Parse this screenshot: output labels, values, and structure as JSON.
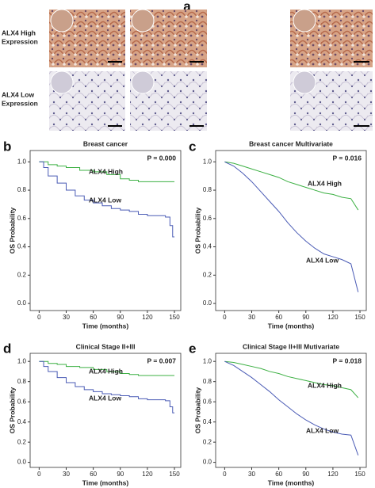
{
  "figure": {
    "panel_a": {
      "label": "a",
      "rows": [
        "ALX4 High",
        "Expression",
        "ALX4 Low",
        "Expression"
      ]
    }
  },
  "chart_data": [
    {
      "type": "line",
      "panel": "b",
      "step": true,
      "title": "Breast cancer",
      "annotation": "P = 0.000",
      "xlabel": "Time (months)",
      "ylabel": "OS  Probability",
      "xlim": [
        -10,
        157
      ],
      "ylim": [
        -0.05,
        1.08
      ],
      "xticks": [
        0,
        30,
        60,
        90,
        120,
        150
      ],
      "yticks": [
        {
          "value": 0,
          "label": "0.0"
        },
        0.2,
        0.4,
        0.6,
        0.8,
        {
          "value": 1,
          "label": "1.0"
        }
      ],
      "series": [
        {
          "name": "ALX4 High",
          "color": "#3cb043",
          "x": [
            0,
            10,
            20,
            30,
            45,
            60,
            75,
            90,
            100,
            110,
            150
          ],
          "values": [
            1.0,
            0.98,
            0.97,
            0.96,
            0.94,
            0.93,
            0.91,
            0.88,
            0.87,
            0.86,
            0.86
          ]
        },
        {
          "name": "ALX4 Low",
          "color": "#4a5bb5",
          "x": [
            0,
            5,
            10,
            20,
            30,
            40,
            50,
            60,
            70,
            80,
            90,
            100,
            110,
            120,
            140,
            145,
            148,
            150
          ],
          "values": [
            1.0,
            0.96,
            0.9,
            0.85,
            0.8,
            0.76,
            0.73,
            0.71,
            0.69,
            0.67,
            0.66,
            0.65,
            0.63,
            0.62,
            0.61,
            0.55,
            0.47,
            0.47
          ]
        }
      ]
    },
    {
      "type": "line",
      "panel": "c",
      "step": false,
      "title": "Breast cancer Multivariate",
      "annotation": "P = 0.016",
      "xlabel": "Time (months)",
      "ylabel": "OS  Probability",
      "xlim": [
        -10,
        157
      ],
      "ylim": [
        -0.05,
        1.08
      ],
      "xticks": [
        0,
        30,
        60,
        90,
        120,
        150
      ],
      "yticks": [
        {
          "value": 0,
          "label": "0.0"
        },
        0.2,
        0.4,
        0.6,
        0.8,
        {
          "value": 1,
          "label": "1.0"
        }
      ],
      "series": [
        {
          "name": "ALX4 High",
          "color": "#3cb043",
          "x": [
            0,
            10,
            20,
            30,
            40,
            50,
            60,
            70,
            80,
            90,
            100,
            110,
            120,
            130,
            140,
            148
          ],
          "values": [
            1.0,
            0.99,
            0.97,
            0.95,
            0.93,
            0.91,
            0.89,
            0.86,
            0.84,
            0.82,
            0.8,
            0.78,
            0.77,
            0.75,
            0.74,
            0.66
          ]
        },
        {
          "name": "ALX4 Low",
          "color": "#4a5bb5",
          "x": [
            0,
            10,
            20,
            30,
            40,
            50,
            60,
            70,
            80,
            90,
            100,
            110,
            120,
            130,
            140,
            148
          ],
          "values": [
            1.0,
            0.97,
            0.92,
            0.86,
            0.79,
            0.72,
            0.65,
            0.57,
            0.5,
            0.44,
            0.39,
            0.35,
            0.33,
            0.31,
            0.28,
            0.08
          ]
        }
      ]
    },
    {
      "type": "line",
      "panel": "d",
      "step": true,
      "title": "Clinical Stage II+III",
      "annotation": "P = 0.007",
      "xlabel": "Time (months)",
      "ylabel": "OS  Probability",
      "xlim": [
        -10,
        157
      ],
      "ylim": [
        -0.05,
        1.08
      ],
      "xticks": [
        0,
        30,
        60,
        90,
        120,
        150
      ],
      "yticks": [
        {
          "value": 0,
          "label": "0.0"
        },
        0.2,
        0.4,
        0.6,
        0.8,
        {
          "value": 1,
          "label": "1.0"
        }
      ],
      "series": [
        {
          "name": "ALX4 High",
          "color": "#3cb043",
          "x": [
            0,
            10,
            20,
            30,
            45,
            60,
            75,
            90,
            100,
            110,
            150
          ],
          "values": [
            1.0,
            0.98,
            0.97,
            0.95,
            0.94,
            0.92,
            0.9,
            0.88,
            0.87,
            0.86,
            0.86
          ]
        },
        {
          "name": "ALX4 Low",
          "color": "#4a5bb5",
          "x": [
            0,
            5,
            10,
            20,
            30,
            40,
            50,
            60,
            70,
            80,
            90,
            100,
            110,
            120,
            140,
            145,
            148,
            150
          ],
          "values": [
            1.0,
            0.95,
            0.9,
            0.84,
            0.79,
            0.75,
            0.72,
            0.7,
            0.68,
            0.67,
            0.66,
            0.65,
            0.63,
            0.62,
            0.61,
            0.55,
            0.49,
            0.49
          ]
        }
      ]
    },
    {
      "type": "line",
      "panel": "e",
      "step": false,
      "title": "Clinical Stage II+III Mutivariate",
      "annotation": "P = 0.018",
      "xlabel": "Time (months)",
      "ylabel": "OS  Probability",
      "xlim": [
        -10,
        157
      ],
      "ylim": [
        -0.05,
        1.08
      ],
      "xticks": [
        0,
        30,
        60,
        90,
        120,
        150
      ],
      "yticks": [
        {
          "value": 0,
          "label": "0.0"
        },
        0.2,
        0.4,
        0.6,
        0.8,
        {
          "value": 1,
          "label": "1.0"
        }
      ],
      "series": [
        {
          "name": "ALX4 High",
          "color": "#3cb043",
          "x": [
            0,
            10,
            20,
            30,
            40,
            50,
            60,
            70,
            80,
            90,
            100,
            110,
            120,
            130,
            140,
            148
          ],
          "values": [
            1.0,
            0.99,
            0.97,
            0.95,
            0.93,
            0.9,
            0.88,
            0.85,
            0.83,
            0.81,
            0.79,
            0.77,
            0.76,
            0.74,
            0.72,
            0.64
          ]
        },
        {
          "name": "ALX4 Low",
          "color": "#4a5bb5",
          "x": [
            0,
            10,
            20,
            30,
            40,
            50,
            60,
            70,
            80,
            90,
            100,
            110,
            120,
            130,
            140,
            148
          ],
          "values": [
            1.0,
            0.96,
            0.9,
            0.84,
            0.77,
            0.7,
            0.62,
            0.55,
            0.48,
            0.42,
            0.37,
            0.33,
            0.3,
            0.28,
            0.27,
            0.07
          ]
        }
      ]
    }
  ]
}
